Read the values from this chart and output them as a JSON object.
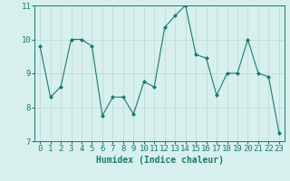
{
  "x": [
    0,
    1,
    2,
    3,
    4,
    5,
    6,
    7,
    8,
    9,
    10,
    11,
    12,
    13,
    14,
    15,
    16,
    17,
    18,
    19,
    20,
    21,
    22,
    23
  ],
  "y": [
    9.8,
    8.3,
    8.6,
    10.0,
    10.0,
    9.8,
    7.75,
    8.3,
    8.3,
    7.8,
    8.75,
    8.6,
    10.35,
    10.7,
    11.0,
    9.55,
    9.45,
    8.35,
    9.0,
    9.0,
    10.0,
    9.0,
    8.9,
    7.25
  ],
  "line_color": "#1a7a6e",
  "marker": "D",
  "marker_size": 2,
  "bg_color": "#d7f0ee",
  "grid_color": "#c0dbd8",
  "xlabel": "Humidex (Indice chaleur)",
  "ylim": [
    7,
    11
  ],
  "xlim": [
    -0.5,
    23.5
  ],
  "yticks": [
    7,
    8,
    9,
    10,
    11
  ],
  "xticks": [
    0,
    1,
    2,
    3,
    4,
    5,
    6,
    7,
    8,
    9,
    10,
    11,
    12,
    13,
    14,
    15,
    16,
    17,
    18,
    19,
    20,
    21,
    22,
    23
  ],
  "tick_color": "#1a7a6e",
  "axis_color": "#1a7a6e",
  "label_fontsize": 7,
  "tick_fontsize": 6.5
}
